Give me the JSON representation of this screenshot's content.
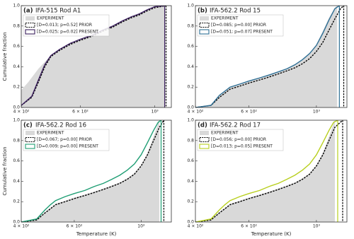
{
  "chart_data": [
    {
      "type": "line",
      "label": "(a)",
      "title": "IFA-515 Rod A1",
      "ylabel": "Cumulative fraction",
      "xscale": "log",
      "legend": "upper left",
      "xlim": [
        400,
        1120
      ],
      "xticks": [
        {
          "value": 400,
          "label": "4 × 10²"
        },
        {
          "value": 600,
          "label": "6 × 10²"
        },
        {
          "value": 1000,
          "label": "10³"
        }
      ],
      "ylim": [
        0,
        1
      ],
      "yticks": [
        {
          "value": 0,
          "label": "0.0"
        },
        {
          "value": 0.2,
          "label": "0.2"
        },
        {
          "value": 0.4,
          "label": "0.4"
        },
        {
          "value": 0.6,
          "label": "0.6"
        },
        {
          "value": 0.8,
          "label": "0.8"
        },
        {
          "value": 1,
          "label": "1.0"
        }
      ],
      "series": [
        {
          "name": "EXPERIMENT",
          "style": "area",
          "color": "#d9d9d9",
          "x": [
            400,
            420,
            450,
            480,
            520,
            560,
            600,
            650,
            700,
            750,
            800,
            850,
            900,
            950,
            1000,
            1040,
            1070
          ],
          "values": [
            0.17,
            0.25,
            0.38,
            0.48,
            0.56,
            0.62,
            0.66,
            0.7,
            0.75,
            0.8,
            0.84,
            0.88,
            0.92,
            0.95,
            0.98,
            0.995,
            1.0
          ]
        },
        {
          "name": "[D=0.013; p=0.52] PRIOR",
          "style": "dashed",
          "color": "#000000",
          "x": [
            400,
            430,
            450,
            470,
            490,
            520,
            560,
            600,
            650,
            700,
            750,
            800,
            850,
            900,
            950,
            1000,
            1040,
            1080
          ],
          "values": [
            0.02,
            0.1,
            0.25,
            0.4,
            0.5,
            0.56,
            0.62,
            0.66,
            0.7,
            0.75,
            0.79,
            0.84,
            0.88,
            0.91,
            0.95,
            0.98,
            0.99,
            1.0
          ]
        },
        {
          "name": "[D=0.025; p=0.02] PRESENT",
          "style": "solid",
          "color": "#3b1f5e",
          "x": [
            400,
            430,
            450,
            470,
            490,
            520,
            560,
            600,
            650,
            700,
            750,
            800,
            850,
            900,
            950,
            1000,
            1040,
            1070
          ],
          "values": [
            0.02,
            0.11,
            0.27,
            0.42,
            0.51,
            0.57,
            0.63,
            0.67,
            0.71,
            0.76,
            0.8,
            0.85,
            0.89,
            0.92,
            0.96,
            0.99,
            0.995,
            1.0
          ]
        }
      ]
    },
    {
      "type": "line",
      "label": "(b)",
      "title": "IFA-562.2 Rod 15",
      "xscale": "log",
      "legend": "upper left",
      "xlim": [
        400,
        1260
      ],
      "xticks": [
        {
          "value": 400,
          "label": "4 × 10²"
        },
        {
          "value": 600,
          "label": "6 × 10²"
        },
        {
          "value": 1000,
          "label": "10³"
        }
      ],
      "ylim": [
        0,
        1
      ],
      "yticks": [
        {
          "value": 0,
          "label": "0.0"
        },
        {
          "value": 0.2,
          "label": "0.2"
        },
        {
          "value": 0.4,
          "label": "0.4"
        },
        {
          "value": 0.6,
          "label": "0.6"
        },
        {
          "value": 0.8,
          "label": "0.8"
        },
        {
          "value": 1,
          "label": "1.0"
        }
      ],
      "series": [
        {
          "name": "EXPERIMENT",
          "style": "area",
          "color": "#d9d9d9",
          "x": [
            400,
            450,
            480,
            500,
            520,
            560,
            600,
            650,
            700,
            750,
            800,
            850,
            900,
            950,
            1000,
            1050,
            1100,
            1150,
            1170
          ],
          "values": [
            0,
            0.03,
            0.12,
            0.16,
            0.2,
            0.23,
            0.26,
            0.29,
            0.32,
            0.35,
            0.38,
            0.42,
            0.47,
            0.53,
            0.62,
            0.75,
            0.88,
            0.98,
            1.0
          ]
        },
        {
          "name": "[D=0.085; p=0.00] PRIOR",
          "style": "dashed",
          "color": "#000000",
          "x": [
            400,
            450,
            480,
            500,
            520,
            560,
            600,
            650,
            700,
            750,
            800,
            850,
            900,
            950,
            1000,
            1050,
            1100,
            1150,
            1200,
            1230
          ],
          "values": [
            0,
            0.02,
            0.1,
            0.14,
            0.18,
            0.21,
            0.24,
            0.27,
            0.3,
            0.33,
            0.36,
            0.39,
            0.43,
            0.48,
            0.55,
            0.64,
            0.76,
            0.87,
            0.97,
            1.0
          ]
        },
        {
          "name": "[D=0.051; p=0.07] PRESENT",
          "style": "solid",
          "color": "#2e6f95",
          "x": [
            400,
            450,
            480,
            500,
            520,
            560,
            600,
            650,
            700,
            750,
            800,
            850,
            900,
            950,
            1000,
            1050,
            1100,
            1150,
            1190
          ],
          "values": [
            0,
            0.02,
            0.12,
            0.16,
            0.2,
            0.23,
            0.26,
            0.29,
            0.32,
            0.35,
            0.38,
            0.42,
            0.47,
            0.53,
            0.61,
            0.73,
            0.86,
            0.97,
            1.0
          ]
        }
      ]
    },
    {
      "type": "line",
      "label": "(c)",
      "title": "IFA-562.2 Rod 16",
      "ylabel": "Cumulative fraction",
      "xlabel": "Temperature (K)",
      "xscale": "log",
      "legend": "upper left",
      "xlim": [
        400,
        1260
      ],
      "xticks": [
        {
          "value": 400,
          "label": "4 × 10²"
        },
        {
          "value": 600,
          "label": "6 × 10²"
        },
        {
          "value": 1000,
          "label": "10³"
        }
      ],
      "ylim": [
        0,
        1
      ],
      "yticks": [
        {
          "value": 0,
          "label": "0.0"
        },
        {
          "value": 0.2,
          "label": "0.2"
        },
        {
          "value": 0.4,
          "label": "0.4"
        },
        {
          "value": 0.6,
          "label": "0.6"
        },
        {
          "value": 0.8,
          "label": "0.8"
        },
        {
          "value": 1,
          "label": "1.0"
        }
      ],
      "series": [
        {
          "name": "EXPERIMENT",
          "style": "area",
          "color": "#d9d9d9",
          "x": [
            400,
            450,
            480,
            500,
            520,
            560,
            600,
            650,
            700,
            750,
            800,
            850,
            900,
            950,
            1000,
            1050,
            1100,
            1150
          ],
          "values": [
            0,
            0.03,
            0.1,
            0.14,
            0.18,
            0.21,
            0.24,
            0.27,
            0.3,
            0.33,
            0.36,
            0.39,
            0.43,
            0.48,
            0.56,
            0.68,
            0.84,
            1.0
          ]
        },
        {
          "name": "[D=0.067; p=0.00] PRIOR",
          "style": "dashed",
          "color": "#000000",
          "x": [
            400,
            450,
            480,
            500,
            520,
            560,
            600,
            650,
            700,
            750,
            800,
            850,
            900,
            950,
            1000,
            1050,
            1100,
            1150,
            1190
          ],
          "values": [
            0,
            0.02,
            0.09,
            0.13,
            0.17,
            0.2,
            0.23,
            0.26,
            0.29,
            0.32,
            0.35,
            0.38,
            0.42,
            0.47,
            0.55,
            0.66,
            0.8,
            0.93,
            1.0
          ]
        },
        {
          "name": "[D=0.009; p=0.00] PRESENT",
          "style": "solid",
          "color": "#1f9e74",
          "x": [
            400,
            450,
            480,
            500,
            520,
            560,
            600,
            650,
            700,
            750,
            800,
            850,
            900,
            950,
            1000,
            1050,
            1100,
            1140,
            1165
          ],
          "values": [
            0,
            0.03,
            0.12,
            0.17,
            0.21,
            0.25,
            0.28,
            0.31,
            0.35,
            0.38,
            0.42,
            0.46,
            0.51,
            0.57,
            0.66,
            0.78,
            0.9,
            0.98,
            1.0
          ]
        }
      ]
    },
    {
      "type": "line",
      "label": "(d)",
      "title": "IFA-562.2 Rod 17",
      "xlabel": "Temperature (K)",
      "xscale": "log",
      "legend": "upper left",
      "xlim": [
        400,
        1260
      ],
      "xticks": [
        {
          "value": 400,
          "label": "4 × 10²"
        },
        {
          "value": 600,
          "label": "6 × 10²"
        },
        {
          "value": 1000,
          "label": "10³"
        }
      ],
      "ylim": [
        0,
        1
      ],
      "yticks": [
        {
          "value": 0,
          "label": "0.0"
        },
        {
          "value": 0.2,
          "label": "0.2"
        },
        {
          "value": 0.4,
          "label": "0.4"
        },
        {
          "value": 0.6,
          "label": "0.6"
        },
        {
          "value": 0.8,
          "label": "0.8"
        },
        {
          "value": 1,
          "label": "1.0"
        }
      ],
      "series": [
        {
          "name": "EXPERIMENT",
          "style": "area",
          "color": "#d9d9d9",
          "x": [
            400,
            450,
            480,
            500,
            520,
            560,
            600,
            650,
            700,
            750,
            800,
            850,
            900,
            950,
            1000,
            1050,
            1100,
            1150
          ],
          "values": [
            0,
            0.03,
            0.1,
            0.14,
            0.18,
            0.21,
            0.24,
            0.27,
            0.3,
            0.33,
            0.36,
            0.39,
            0.43,
            0.48,
            0.56,
            0.68,
            0.84,
            1.0
          ]
        },
        {
          "name": "[D=0.056; p=0.00] PRIOR",
          "style": "dashed",
          "color": "#000000",
          "x": [
            400,
            450,
            480,
            500,
            520,
            560,
            600,
            650,
            700,
            750,
            800,
            850,
            900,
            950,
            1000,
            1050,
            1100,
            1150,
            1220
          ],
          "values": [
            0,
            0.02,
            0.09,
            0.13,
            0.17,
            0.2,
            0.23,
            0.26,
            0.29,
            0.32,
            0.35,
            0.38,
            0.42,
            0.47,
            0.55,
            0.66,
            0.8,
            0.93,
            1.0
          ]
        },
        {
          "name": "[D=0.013; p=0.05] PRESENT",
          "style": "solid",
          "color": "#b8cf1e",
          "x": [
            400,
            450,
            480,
            500,
            520,
            560,
            600,
            650,
            700,
            750,
            800,
            850,
            900,
            950,
            1000,
            1050,
            1100,
            1140,
            1175
          ],
          "values": [
            0,
            0.03,
            0.12,
            0.17,
            0.21,
            0.25,
            0.28,
            0.31,
            0.35,
            0.38,
            0.42,
            0.46,
            0.51,
            0.57,
            0.66,
            0.78,
            0.9,
            0.98,
            1.0
          ]
        }
      ]
    }
  ]
}
